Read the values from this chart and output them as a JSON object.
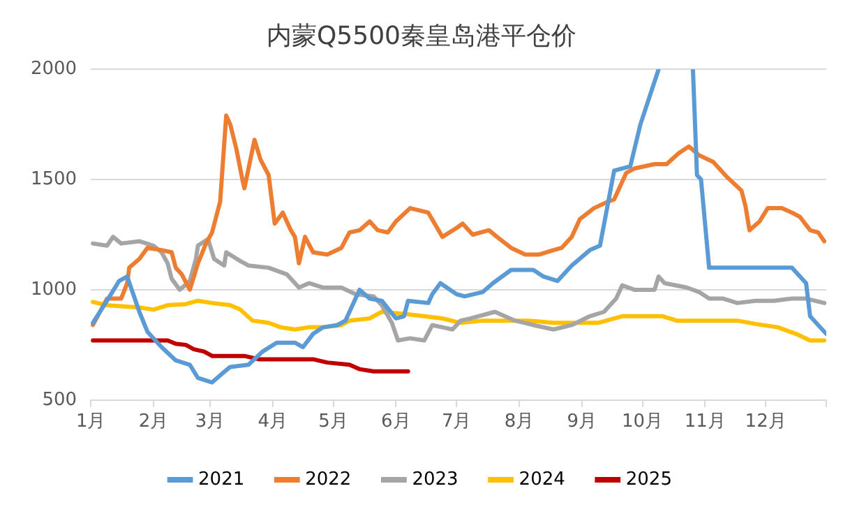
{
  "chart_data": {
    "type": "line",
    "title": "内蒙Q5500秦皇岛港平仓价",
    "xlim": [
      "--01-01",
      "--12-31"
    ],
    "xticks": [
      {
        "value": "--01-01",
        "label": "1月"
      },
      {
        "value": "--02-01",
        "label": "2月"
      },
      {
        "value": "--03-01",
        "label": "3月"
      },
      {
        "value": "--04-01",
        "label": "4月"
      },
      {
        "value": "--05-01",
        "label": "5月"
      },
      {
        "value": "--06-01",
        "label": "6月"
      },
      {
        "value": "--07-01",
        "label": "7月"
      },
      {
        "value": "--08-01",
        "label": "8月"
      },
      {
        "value": "--09-01",
        "label": "9月"
      },
      {
        "value": "--10-01",
        "label": "10月"
      },
      {
        "value": "--11-01",
        "label": "11月"
      },
      {
        "value": "--12-01",
        "label": "12月"
      },
      {
        "value": "--12-31",
        "label": null
      }
    ],
    "ylim": [
      500,
      2000
    ],
    "yticks": [
      500,
      1000,
      1500,
      2000
    ],
    "grid": "y",
    "legend": "bottom",
    "marker": "none",
    "line_style": "solid",
    "series": [
      {
        "name": "2021",
        "color": "#5b9bd5",
        "x": [
          "--01-02",
          "--01-09",
          "--01-15",
          "--01-19",
          "--01-25",
          "--01-29",
          "--02-05",
          "--02-12",
          "--02-19",
          "--02-23",
          "--03-02",
          "--03-07",
          "--03-11",
          "--03-20",
          "--03-27",
          "--04-03",
          "--04-12",
          "--04-16",
          "--04-21",
          "--04-26",
          "--05-03",
          "--05-07",
          "--05-12",
          "--05-14",
          "--05-19",
          "--05-25",
          "--06-01",
          "--06-05",
          "--06-07",
          "--06-17",
          "--06-19",
          "--06-23",
          "--07-01",
          "--07-05",
          "--07-14",
          "--07-19",
          "--07-28",
          "--08-08",
          "--08-13",
          "--08-20",
          "--08-27",
          "--09-05",
          "--09-10",
          "--09-17",
          "--09-25",
          "--09-30",
          "--10-09",
          "--10-18",
          "--10-26",
          "--10-28",
          "--10-30",
          "--11-03",
          "--12-14",
          "--12-21",
          "--12-23",
          "--12-27",
          "--12-31"
        ],
        "values": [
          850,
          950,
          1040,
          1060,
          900,
          810,
          740,
          680,
          660,
          600,
          580,
          620,
          650,
          660,
          720,
          760,
          760,
          740,
          800,
          830,
          840,
          860,
          960,
          1000,
          960,
          950,
          870,
          880,
          950,
          940,
          980,
          1030,
          980,
          970,
          990,
          1030,
          1090,
          1090,
          1060,
          1040,
          1110,
          1180,
          1200,
          1540,
          1560,
          1750,
          2000,
          null,
          2000,
          1520,
          1500,
          1100,
          1100,
          1030,
          880,
          840,
          800
        ]
      },
      {
        "name": "2022",
        "color": "#ed7d31",
        "x": [
          "--01-02",
          "--01-09",
          "--01-16",
          "--01-19",
          "--01-20",
          "--01-25",
          "--01-29",
          "--02-05",
          "--02-10",
          "--02-12",
          "--02-15",
          "--02-19",
          "--02-23",
          "--02-27",
          "--03-02",
          "--03-06",
          "--03-09",
          "--03-11",
          "--03-14",
          "--03-17",
          "--03-18",
          "--03-23",
          "--03-26",
          "--03-30",
          "--04-02",
          "--04-06",
          "--04-10",
          "--04-12",
          "--04-14",
          "--04-17",
          "--04-21",
          "--04-28",
          "--05-05",
          "--05-09",
          "--05-14",
          "--05-19",
          "--05-23",
          "--05-28",
          "--06-01",
          "--06-08",
          "--06-17",
          "--06-24",
          "--07-01",
          "--07-04",
          "--07-09",
          "--07-17",
          "--07-21",
          "--07-28",
          "--08-04",
          "--08-11",
          "--08-18",
          "--08-22",
          "--08-27",
          "--08-31",
          "--09-07",
          "--09-14",
          "--09-17",
          "--09-23",
          "--09-27",
          "--10-07",
          "--10-13",
          "--10-19",
          "--10-24",
          "--10-29",
          "--11-05",
          "--11-12",
          "--11-19",
          "--11-21",
          "--11-23",
          "--11-28",
          "--12-02",
          "--12-09",
          "--12-14",
          "--12-18",
          "--12-23",
          "--12-27",
          "--12-30"
        ],
        "values": [
          840,
          960,
          960,
          1030,
          1100,
          1140,
          1190,
          1180,
          1170,
          1100,
          1070,
          1000,
          1120,
          1210,
          1260,
          1400,
          1790,
          1750,
          1640,
          1500,
          1460,
          1680,
          1590,
          1520,
          1300,
          1350,
          1270,
          1240,
          1120,
          1240,
          1170,
          1160,
          1190,
          1260,
          1270,
          1310,
          1270,
          1260,
          1310,
          1370,
          1350,
          1240,
          1280,
          1300,
          1250,
          1270,
          1240,
          1190,
          1160,
          1160,
          1180,
          1190,
          1240,
          1320,
          1370,
          1400,
          1410,
          1530,
          1550,
          1570,
          1570,
          1620,
          1650,
          1610,
          1580,
          1510,
          1450,
          1380,
          1270,
          1310,
          1370,
          1370,
          1350,
          1330,
          1270,
          1260,
          1220
        ]
      },
      {
        "name": "2023",
        "color": "#a5a5a5",
        "x": [
          "--01-02",
          "--01-09",
          "--01-12",
          "--01-16",
          "--01-25",
          "--02-01",
          "--02-05",
          "--02-08",
          "--02-10",
          "--02-14",
          "--02-19",
          "--02-22",
          "--02-23",
          "--02-28",
          "--03-03",
          "--03-08",
          "--03-09",
          "--03-16",
          "--03-20",
          "--03-30",
          "--04-08",
          "--04-14",
          "--04-19",
          "--04-26",
          "--05-05",
          "--05-12",
          "--05-21",
          "--05-25",
          "--05-30",
          "--06-02",
          "--06-08",
          "--06-15",
          "--06-19",
          "--06-24",
          "--06-29",
          "--07-03",
          "--07-08",
          "--07-20",
          "--07-30",
          "--08-08",
          "--08-18",
          "--08-27",
          "--09-05",
          "--09-12",
          "--09-18",
          "--09-21",
          "--09-27",
          "--10-07",
          "--10-09",
          "--10-12",
          "--10-23",
          "--10-29",
          "--11-03",
          "--11-10",
          "--11-17",
          "--11-26",
          "--12-05",
          "--12-14",
          "--12-21",
          "--12-30"
        ],
        "values": [
          1210,
          1200,
          1240,
          1210,
          1220,
          1200,
          1170,
          1120,
          1050,
          1000,
          1040,
          1140,
          1200,
          1230,
          1140,
          1110,
          1170,
          1130,
          1110,
          1100,
          1070,
          1010,
          1030,
          1010,
          1010,
          980,
          970,
          930,
          850,
          770,
          780,
          770,
          840,
          830,
          820,
          860,
          870,
          900,
          860,
          840,
          820,
          840,
          880,
          900,
          960,
          1020,
          1000,
          1000,
          1060,
          1030,
          1010,
          990,
          960,
          960,
          940,
          950,
          950,
          960,
          960,
          940
        ]
      },
      {
        "name": "2024",
        "color": "#ffc000",
        "x": [
          "--01-02",
          "--01-09",
          "--01-16",
          "--01-25",
          "--02-01",
          "--02-08",
          "--02-17",
          "--02-23",
          "--03-02",
          "--03-11",
          "--03-16",
          "--03-22",
          "--03-30",
          "--04-05",
          "--04-12",
          "--04-19",
          "--04-26",
          "--05-05",
          "--05-09",
          "--05-19",
          "--05-25",
          "--06-06",
          "--06-15",
          "--06-24",
          "--07-03",
          "--07-14",
          "--08-06",
          "--08-18",
          "--09-09",
          "--09-21",
          "--10-11",
          "--10-18",
          "--11-17",
          "--11-26",
          "--12-07",
          "--12-16",
          "--12-23",
          "--12-30"
        ],
        "values": [
          945,
          930,
          925,
          920,
          910,
          930,
          935,
          950,
          940,
          930,
          910,
          860,
          850,
          830,
          820,
          830,
          830,
          840,
          860,
          870,
          900,
          890,
          880,
          870,
          850,
          860,
          860,
          850,
          850,
          880,
          880,
          860,
          860,
          845,
          830,
          800,
          770,
          770
        ]
      },
      {
        "name": "2025",
        "color": "#c00000",
        "x": [
          "--01-02",
          "--02-08",
          "--02-12",
          "--02-17",
          "--02-21",
          "--02-26",
          "--03-02",
          "--03-18",
          "--03-25",
          "--04-21",
          "--04-28",
          "--05-09",
          "--05-14",
          "--05-21",
          "--06-07"
        ],
        "values": [
          770,
          770,
          755,
          750,
          730,
          720,
          700,
          700,
          685,
          685,
          670,
          660,
          640,
          630,
          630
        ]
      }
    ]
  }
}
